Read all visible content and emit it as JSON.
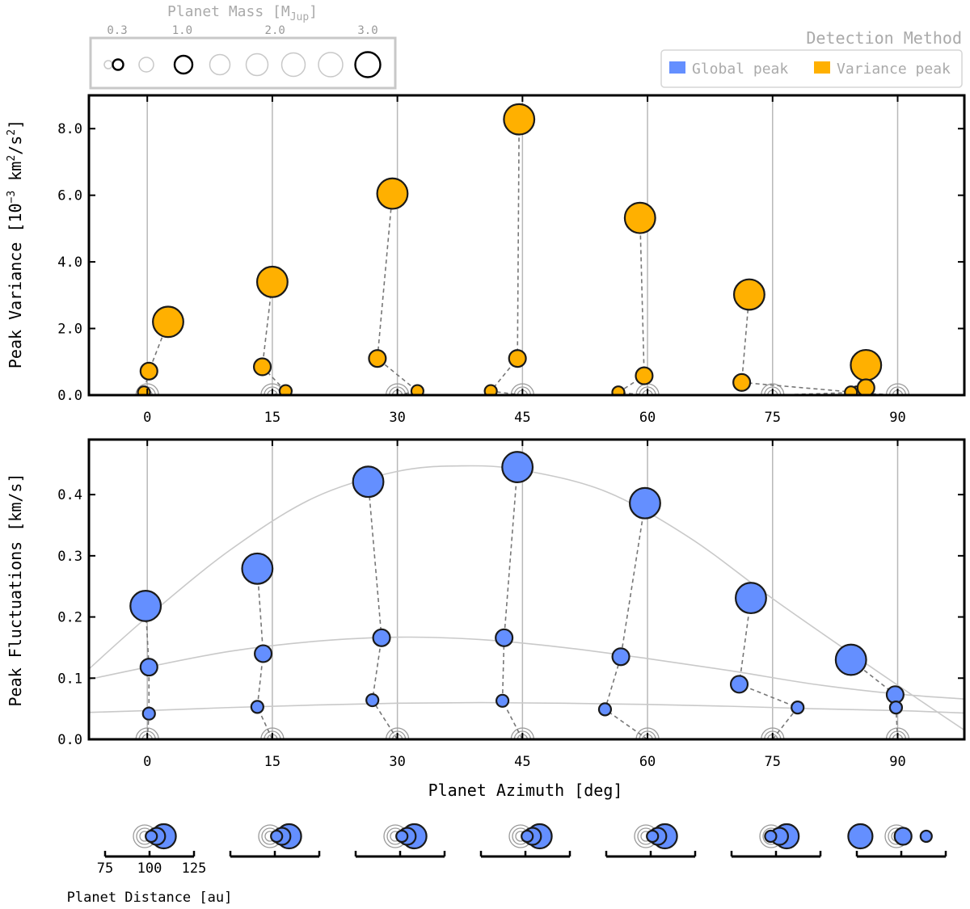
{
  "chart_data": [
    {
      "type": "scatter",
      "panel": "top",
      "ylabel": "Peak Variance [10⁻³ km²/s²]",
      "xlabel": "",
      "xlim": [
        -7,
        98
      ],
      "ylim": [
        0,
        9
      ],
      "yticks": [
        0,
        2,
        4,
        6,
        8
      ],
      "ytick_labels": [
        "0.0",
        "2.0",
        "4.0",
        "6.0",
        "8.0"
      ],
      "xticks": [
        0,
        15,
        30,
        45,
        60,
        75,
        90
      ],
      "xtick_labels": [
        "0",
        "15",
        "30",
        "45",
        "60",
        "75",
        "90"
      ],
      "color": "#FFB000",
      "groups": [
        {
          "azimuth": 0,
          "points": [
            {
              "x": 2.5,
              "y": 2.2,
              "mass": 3.0
            },
            {
              "x": 0.2,
              "y": 0.72,
              "mass": 1.0
            },
            {
              "x": -0.4,
              "y": 0.08,
              "mass": 0.3
            }
          ]
        },
        {
          "azimuth": 15,
          "points": [
            {
              "x": 15.0,
              "y": 3.4,
              "mass": 3.0
            },
            {
              "x": 13.8,
              "y": 0.85,
              "mass": 1.0
            },
            {
              "x": 16.6,
              "y": 0.12,
              "mass": 0.3
            }
          ]
        },
        {
          "azimuth": 30,
          "points": [
            {
              "x": 29.4,
              "y": 6.05,
              "mass": 3.0
            },
            {
              "x": 27.6,
              "y": 1.1,
              "mass": 1.0
            },
            {
              "x": 32.4,
              "y": 0.12,
              "mass": 0.3
            }
          ]
        },
        {
          "azimuth": 45,
          "points": [
            {
              "x": 44.6,
              "y": 8.28,
              "mass": 3.0
            },
            {
              "x": 44.4,
              "y": 1.1,
              "mass": 1.0
            },
            {
              "x": 41.2,
              "y": 0.12,
              "mass": 0.3
            }
          ]
        },
        {
          "azimuth": 60,
          "points": [
            {
              "x": 59.1,
              "y": 5.32,
              "mass": 3.0
            },
            {
              "x": 59.6,
              "y": 0.58,
              "mass": 1.0
            },
            {
              "x": 56.5,
              "y": 0.08,
              "mass": 0.3
            }
          ]
        },
        {
          "azimuth": 75,
          "points": [
            {
              "x": 72.2,
              "y": 3.02,
              "mass": 3.0
            },
            {
              "x": 71.3,
              "y": 0.38,
              "mass": 1.0
            },
            {
              "x": 85.1,
              "y": 0.08,
              "mass": 0.3
            }
          ]
        },
        {
          "azimuth": 90,
          "points": [
            {
              "x": 86.2,
              "y": 0.9,
              "mass": 3.0
            },
            {
              "x": 86.2,
              "y": 0.22,
              "mass": 1.0
            },
            {
              "x": 84.4,
              "y": 0.08,
              "mass": 0.3
            }
          ]
        }
      ]
    },
    {
      "type": "scatter",
      "panel": "bottom",
      "ylabel": "Peak Fluctuations [km/s]",
      "xlabel": "Planet Azimuth [deg]",
      "xlim": [
        -7,
        98
      ],
      "ylim": [
        0,
        0.49
      ],
      "yticks": [
        0,
        0.1,
        0.2,
        0.3,
        0.4
      ],
      "ytick_labels": [
        "0.0",
        "0.1",
        "0.2",
        "0.3",
        "0.4"
      ],
      "xticks": [
        0,
        15,
        30,
        45,
        60,
        75,
        90
      ],
      "xtick_labels": [
        "0",
        "15",
        "30",
        "45",
        "60",
        "75",
        "90"
      ],
      "color": "#648FFF",
      "groups": [
        {
          "azimuth": 0,
          "points": [
            {
              "x": -0.2,
              "y": 0.218,
              "mass": 3.0
            },
            {
              "x": 0.2,
              "y": 0.118,
              "mass": 1.0
            },
            {
              "x": 0.2,
              "y": 0.042,
              "mass": 0.3
            }
          ]
        },
        {
          "azimuth": 15,
          "points": [
            {
              "x": 13.2,
              "y": 0.279,
              "mass": 3.0
            },
            {
              "x": 13.9,
              "y": 0.14,
              "mass": 1.0
            },
            {
              "x": 13.2,
              "y": 0.053,
              "mass": 0.3
            }
          ]
        },
        {
          "azimuth": 30,
          "points": [
            {
              "x": 26.5,
              "y": 0.421,
              "mass": 3.0
            },
            {
              "x": 28.1,
              "y": 0.166,
              "mass": 1.0
            },
            {
              "x": 27.0,
              "y": 0.064,
              "mass": 0.3
            }
          ]
        },
        {
          "azimuth": 45,
          "points": [
            {
              "x": 44.4,
              "y": 0.445,
              "mass": 3.0
            },
            {
              "x": 42.8,
              "y": 0.166,
              "mass": 1.0
            },
            {
              "x": 42.6,
              "y": 0.063,
              "mass": 0.3
            }
          ]
        },
        {
          "azimuth": 60,
          "points": [
            {
              "x": 59.7,
              "y": 0.386,
              "mass": 3.0
            },
            {
              "x": 56.8,
              "y": 0.135,
              "mass": 1.0
            },
            {
              "x": 54.9,
              "y": 0.049,
              "mass": 0.3
            }
          ]
        },
        {
          "azimuth": 75,
          "points": [
            {
              "x": 72.4,
              "y": 0.231,
              "mass": 3.0
            },
            {
              "x": 71.0,
              "y": 0.09,
              "mass": 1.0
            },
            {
              "x": 78.0,
              "y": 0.052,
              "mass": 0.3
            }
          ]
        },
        {
          "azimuth": 90,
          "points": [
            {
              "x": 84.4,
              "y": 0.13,
              "mass": 3.0
            },
            {
              "x": 89.7,
              "y": 0.073,
              "mass": 1.0
            },
            {
              "x": 89.8,
              "y": 0.052,
              "mass": 0.3
            }
          ]
        }
      ],
      "fit_curves": [
        {
          "name": "fit-3.0",
          "points": [
            [
              -7,
              0.115
            ],
            [
              0,
              0.2
            ],
            [
              10,
              0.31
            ],
            [
              20,
              0.395
            ],
            [
              30,
              0.438
            ],
            [
              38,
              0.447
            ],
            [
              45,
              0.44
            ],
            [
              55,
              0.405
            ],
            [
              65,
              0.33
            ],
            [
              75,
              0.23
            ],
            [
              85,
              0.135
            ],
            [
              92,
              0.07
            ],
            [
              98,
              0.015
            ]
          ]
        },
        {
          "name": "fit-1.0",
          "points": [
            [
              -7,
              0.098
            ],
            [
              0,
              0.118
            ],
            [
              10,
              0.144
            ],
            [
              20,
              0.16
            ],
            [
              30,
              0.167
            ],
            [
              40,
              0.163
            ],
            [
              50,
              0.15
            ],
            [
              60,
              0.132
            ],
            [
              70,
              0.112
            ],
            [
              80,
              0.09
            ],
            [
              90,
              0.074
            ],
            [
              98,
              0.066
            ]
          ]
        },
        {
          "name": "fit-0.3",
          "points": [
            [
              -7,
              0.044
            ],
            [
              0,
              0.047
            ],
            [
              10,
              0.052
            ],
            [
              20,
              0.056
            ],
            [
              30,
              0.059
            ],
            [
              40,
              0.06
            ],
            [
              50,
              0.059
            ],
            [
              60,
              0.057
            ],
            [
              70,
              0.054
            ],
            [
              80,
              0.05
            ],
            [
              90,
              0.047
            ],
            [
              98,
              0.043
            ]
          ]
        }
      ]
    }
  ],
  "legend_mass": {
    "title": "Planet Mass [M",
    "title_sub": "Jup",
    "title_end": "]",
    "tick_labels": [
      "0.3",
      "1.0",
      "2.0",
      "3.0"
    ],
    "tick_values": [
      0.3,
      1.0,
      2.0,
      3.0
    ],
    "circle_masses": [
      0.3,
      0.5,
      0.7,
      1.0,
      1.4,
      1.8,
      2.2,
      2.6,
      3.0
    ],
    "highlight_masses": [
      0.5,
      1.0,
      3.0
    ]
  },
  "legend_method": {
    "title": "Detection Method",
    "items": [
      {
        "label": "Global peak",
        "color": "#648FFF"
      },
      {
        "label": "Variance peak",
        "color": "#FFB000"
      }
    ]
  },
  "distance_insets": {
    "label": "Planet Distance [au]",
    "tick_labels": [
      "75",
      "100",
      "125"
    ],
    "tick_values": [
      75,
      100,
      125
    ],
    "azimuths": [
      0,
      15,
      30,
      45,
      60,
      75,
      90
    ],
    "planet_distances": [
      [
        108,
        104,
        101
      ],
      [
        108,
        104,
        101
      ],
      [
        108,
        104,
        101
      ],
      [
        108,
        104,
        101
      ],
      [
        108,
        104,
        101
      ],
      [
        106,
        102,
        97
      ],
      [
        77,
        101,
        114
      ]
    ]
  },
  "top_ylabel_parts": {
    "pre": "Peak Variance [10",
    "sup1": "−3",
    "mid": " km",
    "sup2": "2",
    "mid2": "/s",
    "sup3": "2",
    "end": "]"
  }
}
